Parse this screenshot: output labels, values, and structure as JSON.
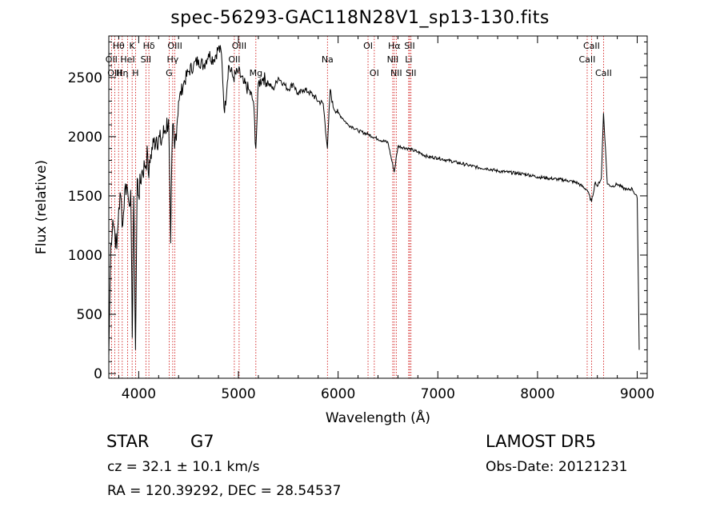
{
  "title": "spec-56293-GAC118N28V1_sp13-130.fits",
  "footer": {
    "object_class": "STAR",
    "subclass": "G7",
    "cz": "cz = 32.1 ± 10.1 km/s",
    "radec": "RA = 120.39292, DEC =  28.54537",
    "survey": "LAMOST  DR5",
    "obs_date": "Obs-Date: 20121231"
  },
  "colors": {
    "spectrum": "#000000",
    "line_markers": "#cc0000",
    "axes": "#000000"
  },
  "chart_data": {
    "type": "line",
    "title": "spec-56293-GAC118N28V1_sp13-130.fits",
    "xlabel": "Wavelength (Å)",
    "ylabel": "Flux (relative)",
    "xlim": [
      3700,
      9100
    ],
    "ylim": [
      -40,
      2850
    ],
    "xticks": [
      4000,
      5000,
      6000,
      7000,
      8000,
      9000
    ],
    "yticks": [
      0,
      500,
      1000,
      1500,
      2000,
      2500
    ],
    "grid": false,
    "series": [
      {
        "x": [
          3700,
          3720,
          3740,
          3760,
          3780,
          3800,
          3820,
          3840,
          3860,
          3880,
          3900,
          3920,
          3935,
          3950,
          3968,
          3985,
          4000,
          4030,
          4060,
          4090,
          4102,
          4120,
          4150,
          4180,
          4220,
          4260,
          4300,
          4320,
          4340,
          4360,
          4400,
          4450,
          4500,
          4550,
          4600,
          4650,
          4700,
          4750,
          4800,
          4830,
          4861,
          4900,
          4950,
          5000,
          5050,
          5100,
          5150,
          5175,
          5200,
          5250,
          5300,
          5350,
          5400,
          5450,
          5500,
          5550,
          5600,
          5650,
          5700,
          5750,
          5800,
          5850,
          5893,
          5920,
          5950,
          6000,
          6050,
          6100,
          6150,
          6200,
          6300,
          6400,
          6500,
          6563,
          6600,
          6700,
          6800,
          6900,
          7000,
          7100,
          7200,
          7300,
          7400,
          7500,
          7600,
          7700,
          7800,
          7900,
          8000,
          8100,
          8200,
          8300,
          8400,
          8498,
          8542,
          8580,
          8600,
          8640,
          8662,
          8700,
          8750,
          8800,
          8850,
          8900,
          8950,
          9000,
          9020
        ],
        "y": [
          150,
          1100,
          1300,
          1200,
          1050,
          1400,
          1500,
          1250,
          1550,
          1600,
          1450,
          1550,
          300,
          1500,
          200,
          1650,
          1500,
          1700,
          1750,
          1850,
          1650,
          1850,
          1950,
          2000,
          1950,
          2050,
          2150,
          1100,
          2100,
          1900,
          2300,
          2450,
          2550,
          2600,
          2650,
          2600,
          2700,
          2650,
          2750,
          2700,
          2200,
          2600,
          2500,
          2550,
          2450,
          2400,
          2300,
          1900,
          2450,
          2500,
          2450,
          2400,
          2500,
          2450,
          2400,
          2450,
          2350,
          2400,
          2380,
          2350,
          2300,
          2280,
          1900,
          2400,
          2250,
          2200,
          2150,
          2100,
          2080,
          2050,
          2020,
          1980,
          1950,
          1700,
          1920,
          1900,
          1870,
          1830,
          1820,
          1800,
          1780,
          1760,
          1740,
          1730,
          1710,
          1700,
          1690,
          1680,
          1660,
          1650,
          1640,
          1630,
          1610,
          1550,
          1450,
          1620,
          1580,
          1650,
          2200,
          1600,
          1580,
          1600,
          1570,
          1550,
          1560,
          1480,
          200
        ]
      }
    ],
    "line_markers": [
      {
        "name": "Hθ",
        "wl": 3798,
        "row": 0
      },
      {
        "name": "K",
        "wl": 3934,
        "row": 0
      },
      {
        "name": "Hδ",
        "wl": 4102,
        "row": 0
      },
      {
        "name": "OIII",
        "wl": 4363,
        "row": 0
      },
      {
        "name": "OIII",
        "wl": 5007,
        "row": 0
      },
      {
        "name": "OI",
        "wl": 6300,
        "row": 0
      },
      {
        "name": "Hα",
        "wl": 6563,
        "row": 0
      },
      {
        "name": "SII",
        "wl": 6717,
        "row": 0
      },
      {
        "name": "CaII",
        "wl": 8542,
        "row": 0
      },
      {
        "name": "OII",
        "wl": 3727,
        "row": 1
      },
      {
        "name": "HeI",
        "wl": 3889,
        "row": 1
      },
      {
        "name": "SII",
        "wl": 4072,
        "row": 1
      },
      {
        "name": "Hγ",
        "wl": 4341,
        "row": 1
      },
      {
        "name": "OII",
        "wl": 4959,
        "row": 1
      },
      {
        "name": "Na",
        "wl": 5893,
        "row": 1
      },
      {
        "name": "NII",
        "wl": 6548,
        "row": 1
      },
      {
        "name": "Li",
        "wl": 6708,
        "row": 1
      },
      {
        "name": "CaII",
        "wl": 8498,
        "row": 1
      },
      {
        "name": "OIII",
        "wl": 3760,
        "row": 2
      },
      {
        "name": "Hη",
        "wl": 3835,
        "row": 2
      },
      {
        "name": "H",
        "wl": 3968,
        "row": 2
      },
      {
        "name": "G",
        "wl": 4305,
        "row": 2
      },
      {
        "name": "Mg",
        "wl": 5175,
        "row": 2
      },
      {
        "name": "OI",
        "wl": 6363,
        "row": 2
      },
      {
        "name": "NII",
        "wl": 6583,
        "row": 2
      },
      {
        "name": "SII",
        "wl": 6731,
        "row": 2
      },
      {
        "name": "CaII",
        "wl": 8662,
        "row": 2
      }
    ]
  }
}
